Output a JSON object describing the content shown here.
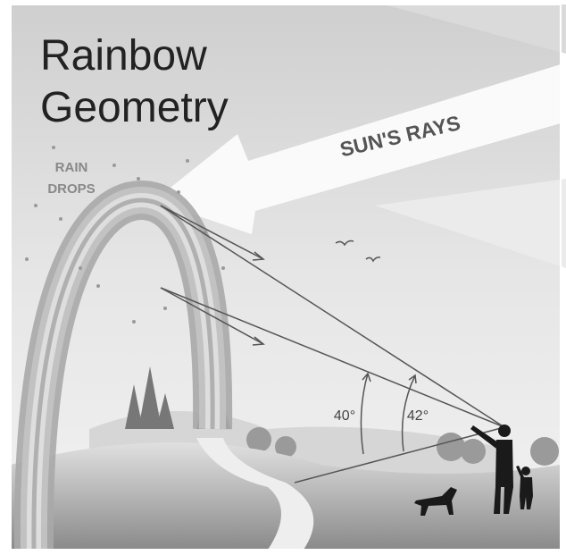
{
  "title": {
    "line1": "Rainbow",
    "line2": "Geometry"
  },
  "labels": {
    "rain_drops": [
      "RAIN",
      "DROPS"
    ],
    "suns_rays": "SUN'S RAYS",
    "angles": [
      "40°",
      "42°"
    ]
  }
}
